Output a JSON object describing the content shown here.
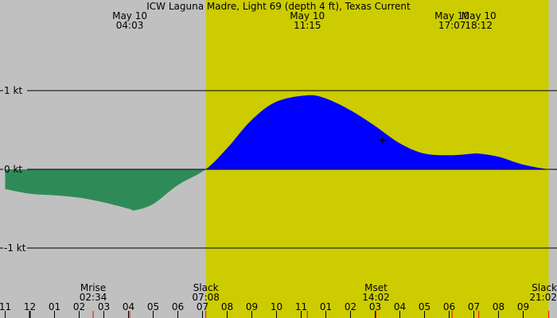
{
  "chart_data": {
    "type": "area",
    "title": "ICW Laguna Madre, Light 69 (depth 4 ft), Texas Current",
    "y_unit": "kt",
    "ylim": [
      -1.5,
      1.5
    ],
    "y_ticks": [
      {
        "value": 1,
        "label": "1 kt"
      },
      {
        "value": 0,
        "label": "0 kt"
      },
      {
        "value": -1,
        "label": "-1 kt"
      }
    ],
    "xlim_hours": [
      -1.0,
      21.6
    ],
    "x_ticks": [
      "11",
      "12",
      "01",
      "02",
      "03",
      "04",
      "05",
      "06",
      "07",
      "08",
      "09",
      "10",
      "11",
      "01",
      "02",
      "03",
      "04",
      "05",
      "06",
      "07",
      "08",
      "09"
    ],
    "daylight": {
      "start": "07:08",
      "end": "21:02"
    },
    "top_events": [
      {
        "date": "May 10",
        "time": "04:03"
      },
      {
        "date": "May 10",
        "time": "11:15"
      },
      {
        "date": "May 10",
        "time": "17:07"
      },
      {
        "date": "May 10",
        "time": "18:12"
      }
    ],
    "bottom_events": [
      {
        "label": "Mrise",
        "time": "02:34"
      },
      {
        "label": "Slack",
        "time": "07:08"
      },
      {
        "label": "Mset",
        "time": "14:02"
      },
      {
        "label": "Slack",
        "time": "21:02"
      }
    ],
    "series": [
      {
        "x": [
          -1.0,
          0.0,
          1.0,
          2.0,
          3.0,
          4.0,
          4.25,
          5.0,
          6.0,
          7.13,
          8.0,
          9.0,
          10.0,
          11.25,
          12.0,
          13.0,
          14.0,
          15.0,
          16.0,
          17.1,
          18.0,
          18.2,
          19.0,
          20.0,
          21.03,
          21.6
        ],
        "y": [
          -0.25,
          -0.31,
          -0.33,
          -0.36,
          -0.42,
          -0.5,
          -0.52,
          -0.44,
          -0.2,
          0.0,
          0.27,
          0.63,
          0.86,
          0.94,
          0.9,
          0.75,
          0.55,
          0.33,
          0.2,
          0.18,
          0.2,
          0.2,
          0.16,
          0.06,
          0.0,
          -0.01
        ]
      }
    ],
    "marker": {
      "x": 14.3,
      "y": 0.37,
      "symbol": "+"
    },
    "colors": {
      "background": "#c0c0c0",
      "daylight": "#cccc00",
      "flood": "#0000ff",
      "ebb": "#2e8b57",
      "gridline": "#000000",
      "tick_day": "#000000",
      "tick_event": "#ff0000"
    }
  }
}
